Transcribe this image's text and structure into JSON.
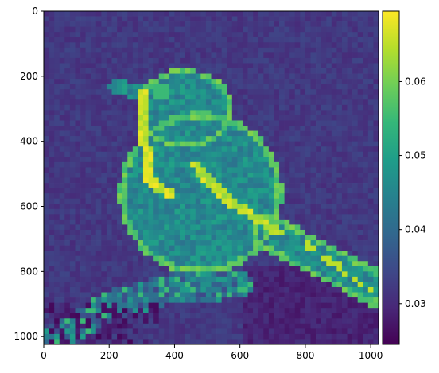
{
  "chart_data": {
    "type": "heatmap",
    "title": "",
    "xlabel": "",
    "ylabel": "",
    "xlim": [
      0,
      1024
    ],
    "ylim": [
      1024,
      0
    ],
    "x_ticks": [
      "0",
      "200",
      "400",
      "600",
      "800",
      "1000"
    ],
    "y_ticks": [
      "0",
      "200",
      "400",
      "600",
      "800",
      "1000"
    ],
    "grid_resolution": [
      64,
      64
    ],
    "colormap": "viridis",
    "colorbar": {
      "min": 0.0245,
      "max": 0.0695,
      "ticks": [
        "0.03",
        "0.04",
        "0.05",
        "0.06"
      ]
    },
    "image_content": "bird (songbird) perched on a branch, attention-style saliency map",
    "background_level": 0.032,
    "body_level": 0.046,
    "outline_level": 0.058,
    "peak_level": 0.069,
    "branch_level": 0.042
  },
  "colors": {
    "viridis": [
      "#440154",
      "#482878",
      "#3e4989",
      "#31688e",
      "#26828e",
      "#1f9e89",
      "#35b779",
      "#6ece58",
      "#b5de2b",
      "#fde725"
    ]
  }
}
